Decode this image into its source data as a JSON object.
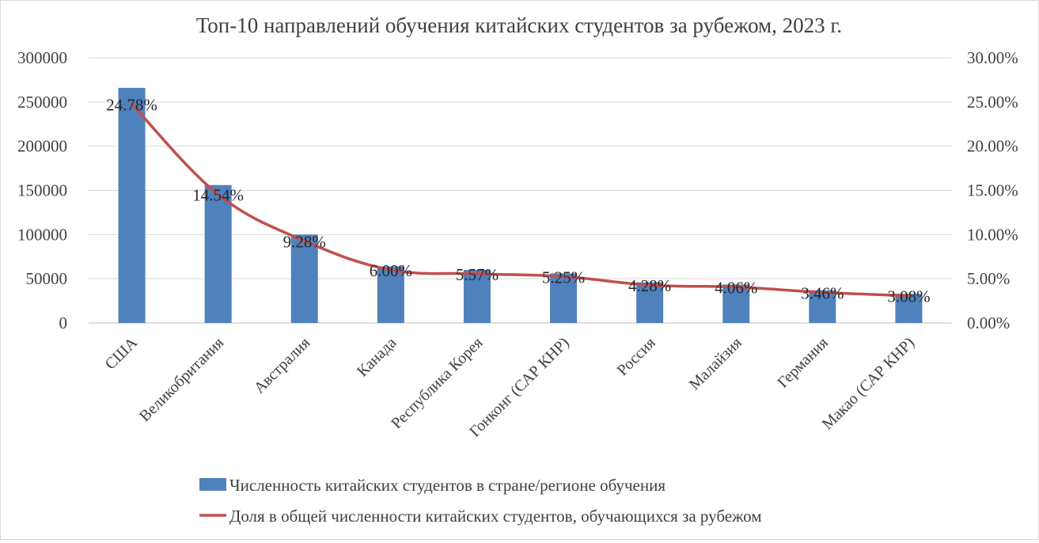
{
  "chart_data": {
    "type": "bar+line",
    "title": "Топ-10 направлений обучения китайских студентов за рубежом, 2023 г.",
    "categories": [
      "США",
      "Великобритания",
      "Австралия",
      "Канада",
      "Республика Корея",
      "Гонконг (САР КНР)",
      "Россия",
      "Малайзия",
      "Германия",
      "Макао (САР КНР)"
    ],
    "series": [
      {
        "name": "Численность китайских студентов в стране/регионе обучения",
        "type": "bar",
        "axis": "left",
        "color": "#4f81bd",
        "values": [
          266000,
          156000,
          100000,
          64000,
          60000,
          56000,
          46000,
          43500,
          37000,
          33000
        ]
      },
      {
        "name": "Доля в общей численности китайских студентов, обучающихся за рубежом",
        "type": "line",
        "axis": "right",
        "color": "#c0504d",
        "values": [
          24.78,
          14.54,
          9.28,
          6.0,
          5.57,
          5.25,
          4.28,
          4.06,
          3.46,
          3.08
        ],
        "data_labels": [
          "24.78%",
          "14.54%",
          "9.28%",
          "6.00%",
          "5.57%",
          "5.25%",
          "4.28%",
          "4.06%",
          "3.46%",
          "3.08%"
        ]
      }
    ],
    "y_left": {
      "ylim": [
        0,
        300000
      ],
      "ticks": [
        0,
        50000,
        100000,
        150000,
        200000,
        250000,
        300000
      ],
      "tick_labels": [
        "0",
        "50000",
        "100000",
        "150000",
        "200000",
        "250000",
        "300000"
      ]
    },
    "y_right": {
      "ylim": [
        0,
        30
      ],
      "ticks": [
        0,
        5,
        10,
        15,
        20,
        25,
        30
      ],
      "tick_labels": [
        "0.00%",
        "5.00%",
        "10.00%",
        "15.00%",
        "20.00%",
        "25.00%",
        "30.00%"
      ]
    },
    "grid": true,
    "legend_position": "bottom-center"
  }
}
